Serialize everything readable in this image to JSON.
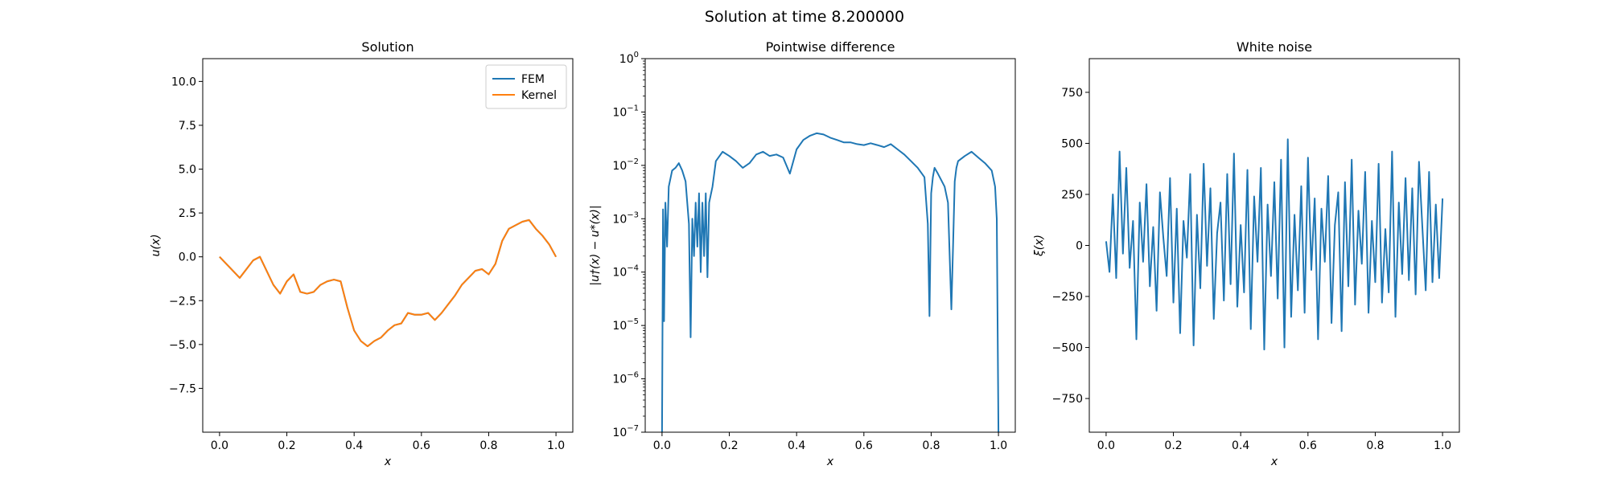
{
  "figure": {
    "suptitle": "Solution at time 8.200000"
  },
  "colors": {
    "fem": "#1f77b4",
    "kernel": "#ff7f0e",
    "difference": "#1f77b4",
    "noise": "#1f77b4"
  },
  "chart_data": [
    {
      "type": "line",
      "title": "Solution",
      "xlabel": "x",
      "ylabel": "u(x)",
      "xlim": [
        -0.05,
        1.05
      ],
      "ylim": [
        -10,
        11.3
      ],
      "xticks": [
        0.0,
        0.2,
        0.4,
        0.6,
        0.8,
        1.0
      ],
      "xtick_labels": [
        "0.0",
        "0.2",
        "0.4",
        "0.6",
        "0.8",
        "1.0"
      ],
      "yticks": [
        -7.5,
        -5.0,
        -2.5,
        0.0,
        2.5,
        5.0,
        7.5,
        10.0
      ],
      "ytick_labels": [
        "−7.5",
        "−5.0",
        "−2.5",
        "0.0",
        "2.5",
        "5.0",
        "7.5",
        "10.0"
      ],
      "legend": {
        "placement": "top-right",
        "entries": [
          "FEM",
          "Kernel"
        ]
      },
      "x": [
        0.0,
        0.02,
        0.04,
        0.06,
        0.08,
        0.1,
        0.12,
        0.14,
        0.16,
        0.18,
        0.2,
        0.22,
        0.24,
        0.26,
        0.28,
        0.3,
        0.32,
        0.34,
        0.36,
        0.38,
        0.4,
        0.42,
        0.44,
        0.46,
        0.48,
        0.5,
        0.52,
        0.54,
        0.56,
        0.58,
        0.6,
        0.62,
        0.64,
        0.66,
        0.68,
        0.7,
        0.72,
        0.74,
        0.76,
        0.78,
        0.8,
        0.82,
        0.84,
        0.86,
        0.88,
        0.9,
        0.92,
        0.94,
        0.96,
        0.98,
        1.0
      ],
      "series": [
        {
          "name": "FEM",
          "values": [
            0.0,
            -0.4,
            -0.8,
            -1.2,
            -0.7,
            -0.2,
            0.0,
            -0.8,
            -1.6,
            -2.1,
            -1.4,
            -1.0,
            -2.0,
            -2.1,
            -2.0,
            -1.6,
            -1.4,
            -1.3,
            -1.4,
            -2.9,
            -4.2,
            -4.8,
            -5.1,
            -4.8,
            -4.6,
            -4.2,
            -3.9,
            -3.8,
            -3.2,
            -3.3,
            -3.3,
            -3.2,
            -3.6,
            -3.2,
            -2.7,
            -2.2,
            -1.6,
            -1.2,
            -0.8,
            -0.7,
            -1.0,
            -0.4,
            0.9,
            1.6,
            1.8,
            2.0,
            2.1,
            1.6,
            1.2,
            0.7,
            0.0
          ]
        },
        {
          "name": "Kernel",
          "values": [
            0.0,
            -0.4,
            -0.8,
            -1.2,
            -0.7,
            -0.2,
            0.0,
            -0.8,
            -1.6,
            -2.1,
            -1.4,
            -1.0,
            -2.0,
            -2.1,
            -2.0,
            -1.6,
            -1.4,
            -1.3,
            -1.4,
            -2.9,
            -4.2,
            -4.8,
            -5.1,
            -4.8,
            -4.6,
            -4.2,
            -3.9,
            -3.8,
            -3.2,
            -3.3,
            -3.3,
            -3.2,
            -3.6,
            -3.2,
            -2.7,
            -2.2,
            -1.6,
            -1.2,
            -0.8,
            -0.7,
            -1.0,
            -0.4,
            0.9,
            1.6,
            1.8,
            2.0,
            2.1,
            1.6,
            1.2,
            0.7,
            0.0
          ]
        }
      ]
    },
    {
      "type": "line",
      "title": "Pointwise difference",
      "xlabel": "x",
      "ylabel": "|u†(x) − u*(x)|",
      "yscale": "log",
      "xlim": [
        -0.05,
        1.05
      ],
      "ylim": [
        1e-07,
        1
      ],
      "xticks": [
        0.0,
        0.2,
        0.4,
        0.6,
        0.8,
        1.0
      ],
      "xtick_labels": [
        "0.0",
        "0.2",
        "0.4",
        "0.6",
        "0.8",
        "1.0"
      ],
      "yticks": [
        1e-07,
        1e-06,
        1e-05,
        0.0001,
        0.001,
        0.01,
        0.1,
        1
      ],
      "ytick_labels": [
        {
          "base": "10",
          "exp": "−7"
        },
        {
          "base": "10",
          "exp": "−6"
        },
        {
          "base": "10",
          "exp": "−5"
        },
        {
          "base": "10",
          "exp": "−4"
        },
        {
          "base": "10",
          "exp": "−3"
        },
        {
          "base": "10",
          "exp": "−2"
        },
        {
          "base": "10",
          "exp": "−1"
        },
        {
          "base": "10",
          "exp": "0"
        }
      ],
      "x": [
        0.0,
        0.003,
        0.006,
        0.01,
        0.015,
        0.02,
        0.03,
        0.04,
        0.05,
        0.06,
        0.07,
        0.08,
        0.085,
        0.09,
        0.095,
        0.1,
        0.105,
        0.11,
        0.115,
        0.12,
        0.125,
        0.13,
        0.135,
        0.14,
        0.15,
        0.16,
        0.18,
        0.2,
        0.22,
        0.24,
        0.26,
        0.28,
        0.3,
        0.32,
        0.34,
        0.36,
        0.38,
        0.4,
        0.42,
        0.44,
        0.46,
        0.48,
        0.5,
        0.52,
        0.54,
        0.56,
        0.58,
        0.6,
        0.62,
        0.64,
        0.66,
        0.68,
        0.7,
        0.72,
        0.74,
        0.76,
        0.78,
        0.79,
        0.795,
        0.8,
        0.805,
        0.81,
        0.82,
        0.84,
        0.85,
        0.86,
        0.865,
        0.87,
        0.875,
        0.88,
        0.9,
        0.92,
        0.94,
        0.96,
        0.98,
        0.99,
        0.995,
        1.0
      ],
      "series": [
        {
          "name": "",
          "values": [
            1e-07,
            0.0015,
            1.2e-05,
            0.002,
            0.0003,
            0.004,
            0.008,
            0.009,
            0.011,
            0.008,
            0.005,
            0.0008,
            6e-06,
            0.001,
            0.0002,
            0.002,
            0.0003,
            0.003,
            0.0001,
            0.002,
            0.0002,
            0.003,
            8e-05,
            0.002,
            0.004,
            0.012,
            0.018,
            0.015,
            0.012,
            0.009,
            0.011,
            0.016,
            0.018,
            0.015,
            0.016,
            0.014,
            0.007,
            0.02,
            0.03,
            0.036,
            0.04,
            0.038,
            0.033,
            0.03,
            0.027,
            0.027,
            0.025,
            0.024,
            0.026,
            0.024,
            0.022,
            0.025,
            0.02,
            0.016,
            0.012,
            0.009,
            0.006,
            0.0008,
            1.5e-05,
            0.003,
            0.006,
            0.009,
            0.007,
            0.004,
            0.002,
            2e-05,
            0.0003,
            0.005,
            0.009,
            0.012,
            0.015,
            0.018,
            0.014,
            0.011,
            0.008,
            0.004,
            0.001,
            1e-07
          ]
        }
      ]
    },
    {
      "type": "line",
      "title": "White noise",
      "xlabel": "x",
      "ylabel": "ξ(x)",
      "xlim": [
        -0.05,
        1.05
      ],
      "ylim": [
        -915,
        915
      ],
      "xticks": [
        0.0,
        0.2,
        0.4,
        0.6,
        0.8,
        1.0
      ],
      "xtick_labels": [
        "0.0",
        "0.2",
        "0.4",
        "0.6",
        "0.8",
        "1.0"
      ],
      "yticks": [
        -750,
        -500,
        -250,
        0,
        250,
        500,
        750
      ],
      "ytick_labels": [
        "−750",
        "−500",
        "−250",
        "0",
        "250",
        "500",
        "750"
      ],
      "x": [
        0.0,
        0.01,
        0.02,
        0.03,
        0.04,
        0.05,
        0.06,
        0.07,
        0.08,
        0.09,
        0.1,
        0.11,
        0.12,
        0.13,
        0.14,
        0.15,
        0.16,
        0.17,
        0.18,
        0.19,
        0.2,
        0.21,
        0.22,
        0.23,
        0.24,
        0.25,
        0.26,
        0.27,
        0.28,
        0.29,
        0.3,
        0.31,
        0.32,
        0.33,
        0.34,
        0.35,
        0.36,
        0.37,
        0.38,
        0.39,
        0.4,
        0.41,
        0.42,
        0.43,
        0.44,
        0.45,
        0.46,
        0.47,
        0.48,
        0.49,
        0.5,
        0.51,
        0.52,
        0.53,
        0.54,
        0.55,
        0.56,
        0.57,
        0.58,
        0.59,
        0.6,
        0.61,
        0.62,
        0.63,
        0.64,
        0.65,
        0.66,
        0.67,
        0.68,
        0.69,
        0.7,
        0.71,
        0.72,
        0.73,
        0.74,
        0.75,
        0.76,
        0.77,
        0.78,
        0.79,
        0.8,
        0.81,
        0.82,
        0.83,
        0.84,
        0.85,
        0.86,
        0.87,
        0.88,
        0.89,
        0.9,
        0.91,
        0.92,
        0.93,
        0.94,
        0.95,
        0.96,
        0.97,
        0.98,
        0.99,
        1.0
      ],
      "series": [
        {
          "name": "",
          "values": [
            20,
            -130,
            250,
            -160,
            460,
            -40,
            380,
            -110,
            120,
            -460,
            210,
            -80,
            300,
            -200,
            90,
            -320,
            260,
            40,
            -150,
            330,
            -280,
            180,
            -430,
            120,
            -60,
            350,
            -490,
            150,
            -210,
            400,
            -100,
            280,
            -360,
            60,
            210,
            -270,
            350,
            -190,
            450,
            -300,
            100,
            -230,
            370,
            -410,
            240,
            -80,
            380,
            -510,
            200,
            -150,
            310,
            -260,
            420,
            -500,
            520,
            -350,
            150,
            -220,
            290,
            -330,
            430,
            -120,
            230,
            -460,
            180,
            -80,
            340,
            -380,
            100,
            260,
            -420,
            310,
            -200,
            420,
            -290,
            170,
            -90,
            360,
            -330,
            120,
            -180,
            400,
            -280,
            80,
            -230,
            460,
            -350,
            210,
            -140,
            330,
            -170,
            280,
            -240,
            410,
            90,
            -220,
            360,
            -180,
            200,
            -160,
            230
          ]
        }
      ]
    }
  ]
}
